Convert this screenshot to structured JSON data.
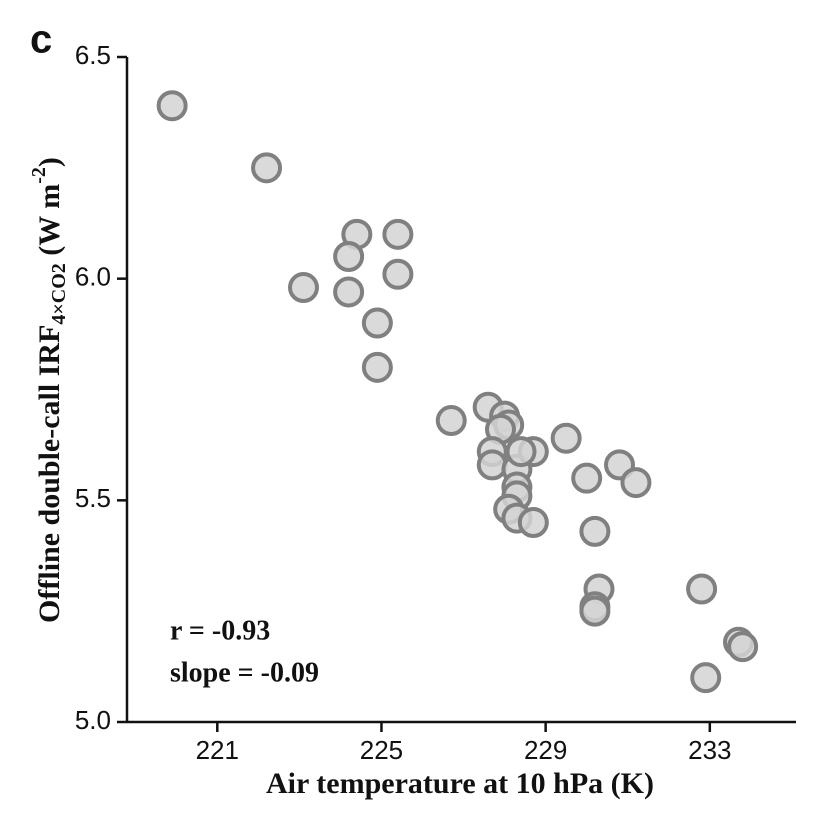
{
  "chart_data": {
    "type": "scatter",
    "panel_label": "c",
    "xlabel": "Air temperature at 10 hPa (K)",
    "ylabel": {
      "main": "Offline double-call IRF",
      "subscript": "4×CO2",
      "unit": " (W m",
      "superscript": "-2",
      "close": ")"
    },
    "annotations": [
      "r = -0.93",
      "slope = -0.09"
    ],
    "xlim": [
      218.8,
      235.1
    ],
    "xticks": [
      221,
      225,
      229,
      233
    ],
    "ylim": [
      5.0,
      6.5
    ],
    "yticks": [
      {
        "value": 5.0,
        "label": "5.0"
      },
      5.5,
      {
        "value": 6.0,
        "label": "6.0"
      },
      6.5
    ],
    "color": "#d3d3d3",
    "edgecolor": "#808080",
    "x": [
      219.9,
      222.2,
      223.1,
      224.4,
      224.2,
      224.2,
      225.4,
      225.4,
      224.9,
      224.9,
      226.7,
      227.6,
      228.0,
      228.1,
      227.9,
      227.7,
      227.7,
      228.3,
      228.3,
      228.3,
      228.1,
      228.3,
      228.7,
      228.4,
      228.7,
      229.5,
      230.0,
      230.2,
      230.3,
      230.2,
      230.2,
      230.8,
      231.2,
      232.8,
      232.9,
      233.7,
      233.8
    ],
    "y": [
      6.39,
      6.25,
      5.98,
      6.1,
      6.05,
      5.97,
      6.1,
      6.01,
      5.9,
      5.8,
      5.68,
      5.71,
      5.69,
      5.67,
      5.66,
      5.61,
      5.58,
      5.57,
      5.53,
      5.51,
      5.48,
      5.46,
      5.61,
      5.61,
      5.45,
      5.64,
      5.55,
      5.43,
      5.3,
      5.26,
      5.25,
      5.58,
      5.54,
      5.3,
      5.1,
      5.18,
      5.17
    ]
  }
}
